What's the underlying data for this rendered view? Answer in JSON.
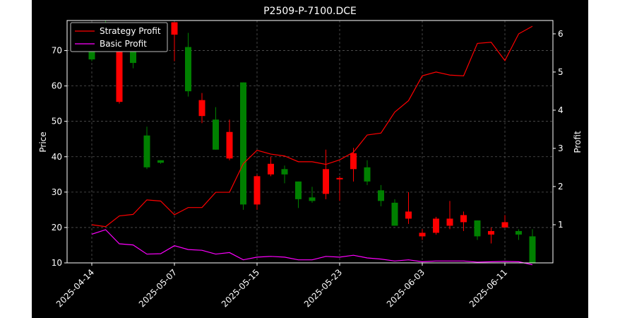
{
  "chart_data": {
    "type": "candlestick",
    "title": "P2509-P-7100.DCE",
    "ylabel": "Price",
    "y2label": "Profit",
    "ylim": [
      10,
      78.5
    ],
    "y2lim": [
      0.0,
      6.35
    ],
    "yticks": [
      10,
      20,
      30,
      40,
      50,
      60,
      70
    ],
    "y2ticks": [
      1,
      2,
      3,
      4,
      5,
      6
    ],
    "xticks": [
      {
        "i": 0,
        "label": "2025-04-14"
      },
      {
        "i": 6,
        "label": "2025-05-07"
      },
      {
        "i": 12,
        "label": "2025-05-15"
      },
      {
        "i": 18,
        "label": "2025-05-23"
      },
      {
        "i": 24,
        "label": "2025-06-03"
      },
      {
        "i": 30,
        "label": "2025-06-11"
      }
    ],
    "grid": true,
    "legend_position": "top-left",
    "colors": {
      "background": "#000000",
      "up": "#ff0000",
      "down": "#008000",
      "strategy": "#ff0000",
      "basic": "#ff00ff",
      "grid": "#555555",
      "axis": "#ffffff"
    },
    "candles": [
      {
        "open": 70.0,
        "high": 75.0,
        "low": 67.0,
        "close": 67.5
      },
      {
        "open": 78.0,
        "high": 79.0,
        "low": 76.0,
        "close": 77.0
      },
      {
        "open": 55.5,
        "high": 72.0,
        "low": 55.0,
        "close": 71.0
      },
      {
        "open": 70.0,
        "high": 74.0,
        "low": 65.0,
        "close": 66.5
      },
      {
        "open": 46.0,
        "high": 48.5,
        "low": 36.5,
        "close": 37.0
      },
      {
        "open": 39.0,
        "high": 39.0,
        "low": 38.0,
        "close": 38.3
      },
      {
        "open": 74.5,
        "high": 78.0,
        "low": 67.0,
        "close": 78.0
      },
      {
        "open": 71.0,
        "high": 75.0,
        "low": 57.0,
        "close": 58.5
      },
      {
        "open": 51.5,
        "high": 58.0,
        "low": 49.5,
        "close": 56.0
      },
      {
        "open": 50.5,
        "high": 54.0,
        "low": 42.0,
        "close": 42.0
      },
      {
        "open": 39.5,
        "high": 50.5,
        "low": 39.0,
        "close": 47.0
      },
      {
        "open": 61.0,
        "high": 61.0,
        "low": 25.0,
        "close": 26.5
      },
      {
        "open": 26.5,
        "high": 35.0,
        "low": 25.0,
        "close": 34.5
      },
      {
        "open": 35.0,
        "high": 40.0,
        "low": 34.5,
        "close": 38.0
      },
      {
        "open": 36.5,
        "high": 37.5,
        "low": 32.5,
        "close": 35.0
      },
      {
        "open": 33.0,
        "high": 33.0,
        "low": 25.5,
        "close": 28.0
      },
      {
        "open": 28.5,
        "high": 31.5,
        "low": 27.0,
        "close": 27.5
      },
      {
        "open": 29.5,
        "high": 42.0,
        "low": 28.0,
        "close": 36.5
      },
      {
        "open": 34.0,
        "high": 34.5,
        "low": 27.5,
        "close": 34.0
      },
      {
        "open": 36.5,
        "high": 42.5,
        "low": 33.0,
        "close": 41.0
      },
      {
        "open": 37.0,
        "high": 39.0,
        "low": 32.0,
        "close": 33.0
      },
      {
        "open": 30.5,
        "high": 32.0,
        "low": 26.0,
        "close": 27.5
      },
      {
        "open": 27.0,
        "high": 28.0,
        "low": 20.5,
        "close": 20.5
      },
      {
        "open": 22.5,
        "high": 30.0,
        "low": 21.0,
        "close": 24.5
      },
      {
        "open": 17.5,
        "high": 19.5,
        "low": 16.5,
        "close": 18.5
      },
      {
        "open": 18.5,
        "high": 23.0,
        "low": 18.0,
        "close": 22.5
      },
      {
        "open": 20.5,
        "high": 27.5,
        "low": 19.5,
        "close": 22.5
      },
      {
        "open": 21.5,
        "high": 24.5,
        "low": 19.0,
        "close": 23.5
      },
      {
        "open": 22.0,
        "high": 22.0,
        "low": 16.5,
        "close": 17.5
      },
      {
        "open": 18.0,
        "high": 20.0,
        "low": 15.5,
        "close": 19.0
      },
      {
        "open": 20.0,
        "high": 23.5,
        "low": 20.0,
        "close": 21.5
      },
      {
        "open": 19.0,
        "high": 19.5,
        "low": 16.5,
        "close": 18.0
      },
      {
        "open": 17.5,
        "high": 19.5,
        "low": 10.0,
        "close": 10.0
      }
    ],
    "series": [
      {
        "name": "Strategy Profit",
        "axis": "right",
        "values": [
          1.0,
          0.95,
          1.23,
          1.27,
          1.65,
          1.62,
          1.26,
          1.45,
          1.45,
          1.85,
          1.85,
          2.6,
          2.95,
          2.85,
          2.8,
          2.65,
          2.65,
          2.58,
          2.7,
          2.9,
          3.35,
          3.4,
          3.95,
          4.25,
          4.9,
          5.0,
          4.92,
          4.9,
          5.75,
          5.78,
          5.3,
          6.0,
          6.2
        ]
      },
      {
        "name": "Basic Profit",
        "axis": "right",
        "values": [
          0.75,
          0.87,
          0.5,
          0.47,
          0.23,
          0.24,
          0.45,
          0.35,
          0.33,
          0.23,
          0.27,
          0.08,
          0.15,
          0.17,
          0.15,
          0.08,
          0.08,
          0.17,
          0.15,
          0.2,
          0.13,
          0.1,
          0.05,
          0.08,
          0.03,
          0.05,
          0.05,
          0.05,
          0.02,
          0.03,
          0.04,
          0.03,
          -0.05
        ]
      }
    ]
  }
}
